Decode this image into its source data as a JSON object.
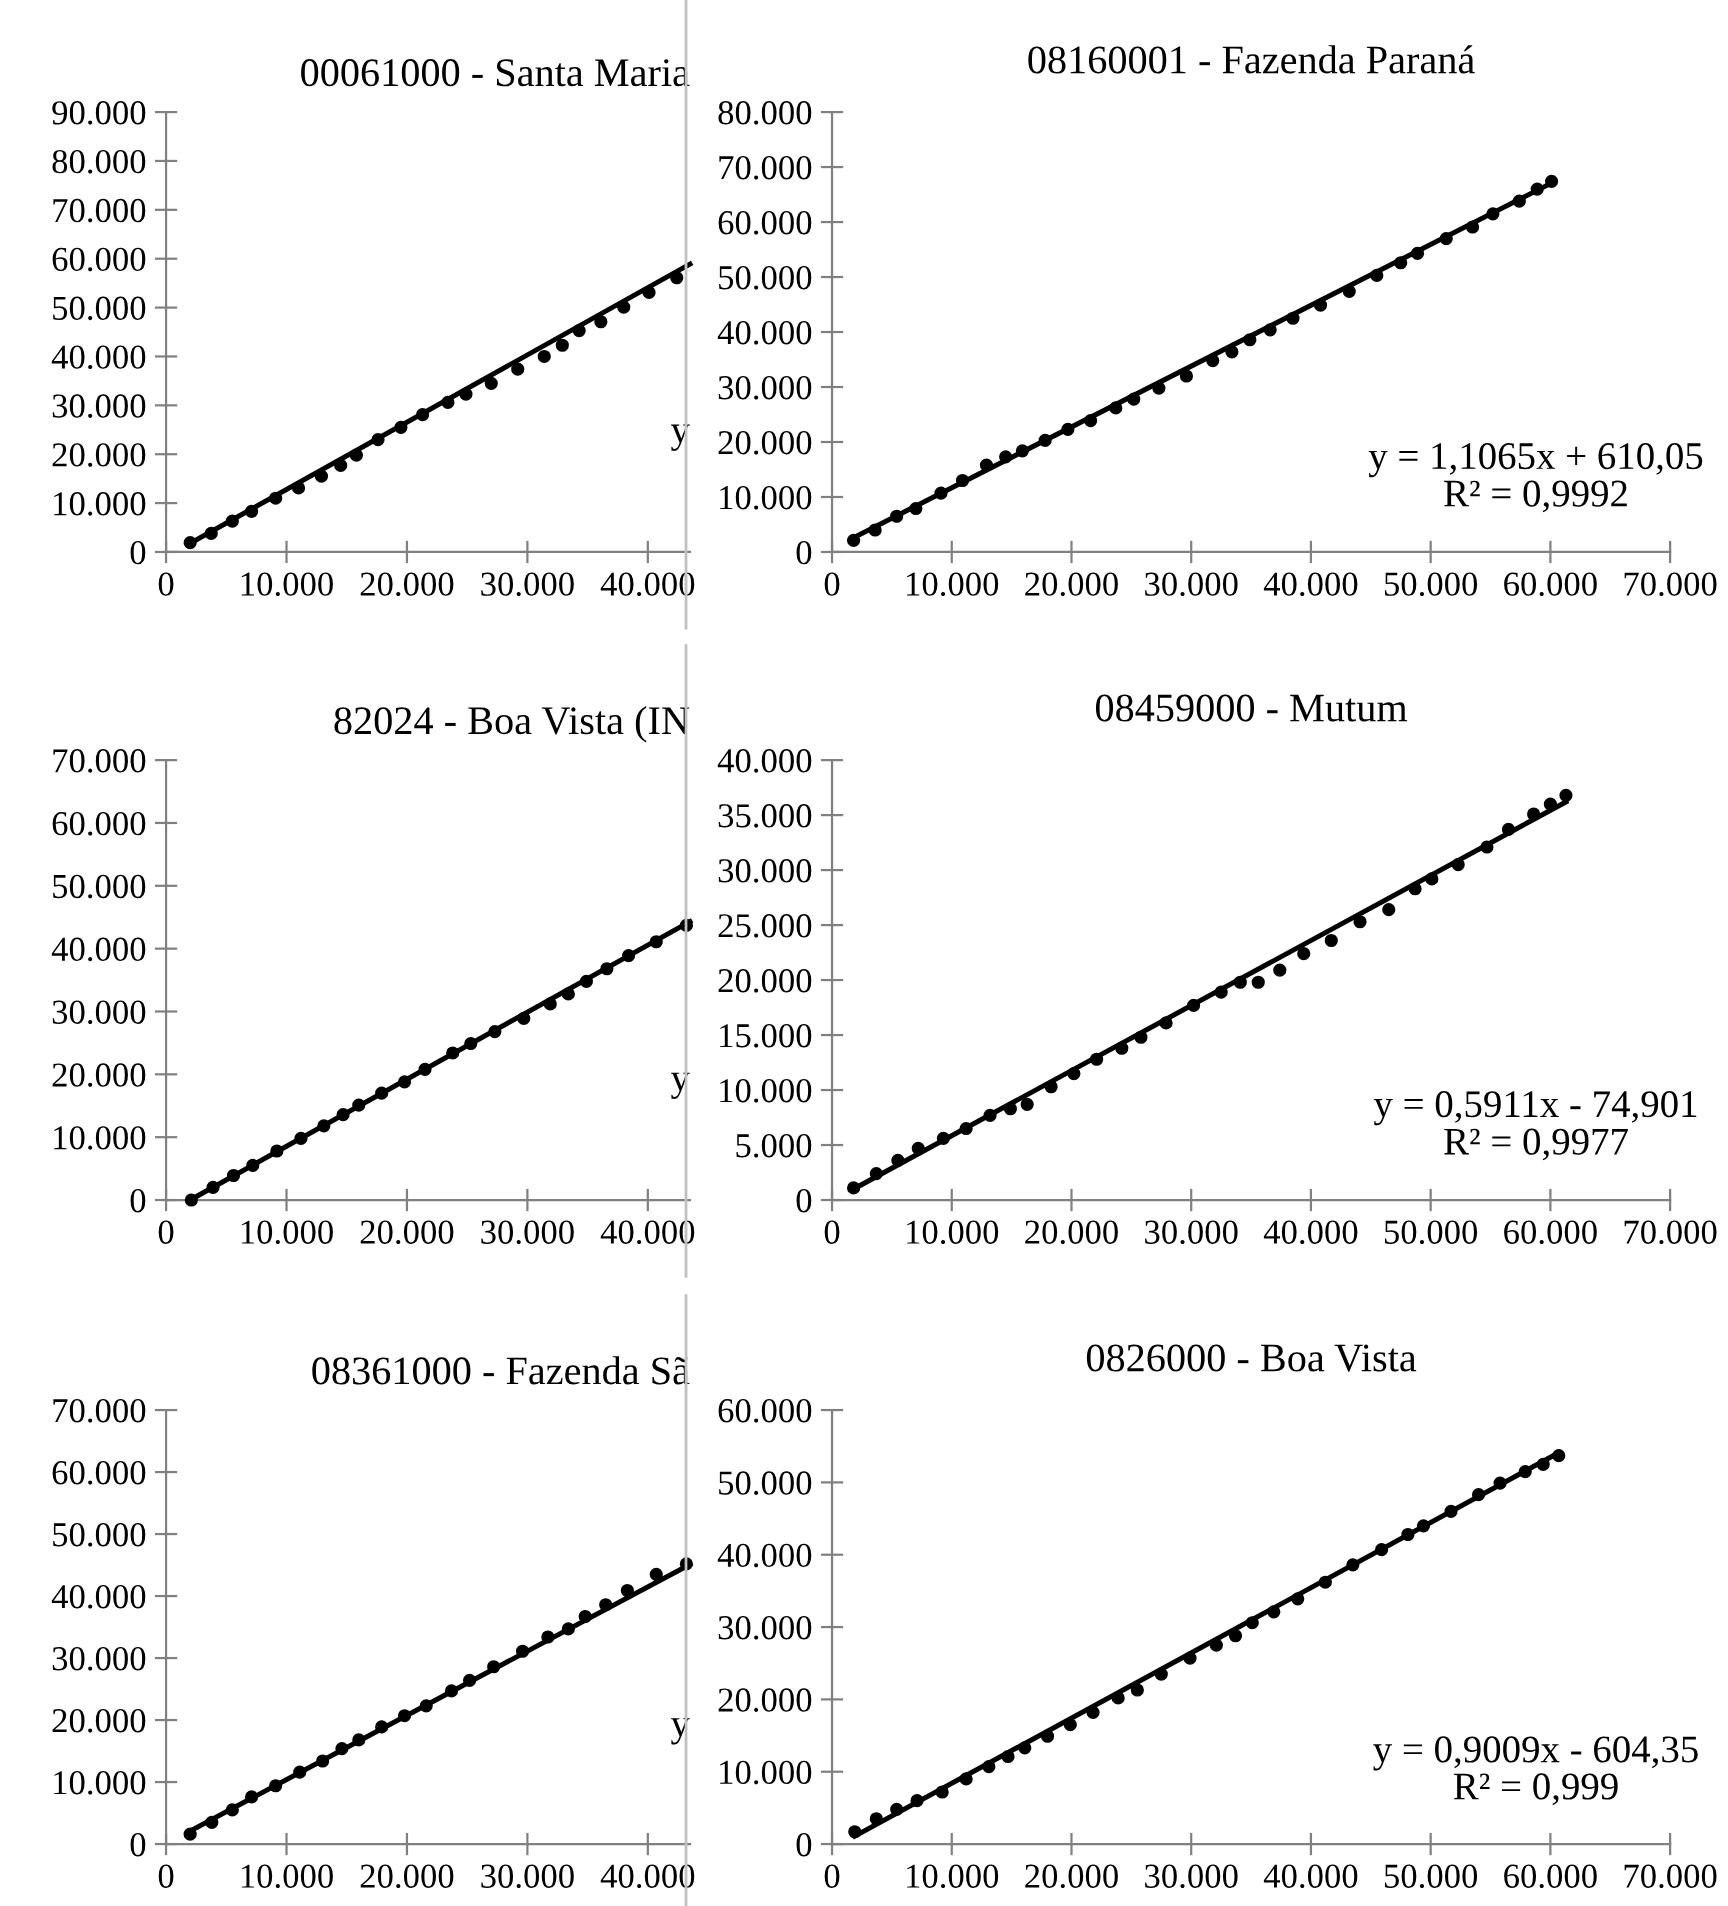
{
  "chart_data": [
    {
      "type": "scatter",
      "title": "00061000 - Santa Maria",
      "annotations": [
        "y"
      ],
      "xlim": [
        0,
        43500
      ],
      "ylim": [
        0,
        90000
      ],
      "xticks": [
        0,
        {
          "value": 10000,
          "label": "10.000"
        },
        {
          "value": 20000,
          "label": "20.000"
        },
        {
          "value": 30000,
          "label": "30.000"
        },
        {
          "value": 40000,
          "label": "40.000"
        }
      ],
      "yticks": [
        0,
        {
          "value": 10000,
          "label": "10.000"
        },
        {
          "value": 20000,
          "label": "20.000"
        },
        {
          "value": 30000,
          "label": "30.000"
        },
        {
          "value": 40000,
          "label": "40.000"
        },
        {
          "value": 50000,
          "label": "50.000"
        },
        {
          "value": 60000,
          "label": "60.000"
        },
        {
          "value": 70000,
          "label": "70.000"
        },
        {
          "value": 80000,
          "label": "80.000"
        },
        {
          "value": 90000,
          "label": "90.000"
        }
      ],
      "series": [
        {
          "marker": "circle",
          "color": "#000000",
          "x": [
            2000,
            3750,
            5500,
            7100,
            9100,
            11000,
            12900,
            14500,
            15800,
            17600,
            19500,
            21300,
            23400,
            24900,
            27000,
            29200,
            31400,
            32900,
            34300,
            36100,
            38000,
            40100,
            42400
          ],
          "values": [
            1900,
            3800,
            6300,
            8300,
            11000,
            13100,
            15500,
            17700,
            19800,
            23000,
            25500,
            28100,
            30600,
            32300,
            34500,
            37400,
            40000,
            42300,
            45300,
            47100,
            50100,
            53100,
            56100
          ]
        },
        {
          "type": "line",
          "marker": "none",
          "color": "#000000",
          "x": [
            1800,
            43500
          ],
          "values": [
            1500,
            58900
          ]
        }
      ]
    },
    {
      "type": "scatter",
      "title": "08160001 - Fazenda Paraná",
      "annotations": [
        "y = 1,1065x + 610,05",
        "R² = 0,9992"
      ],
      "xlim": [
        0,
        70000
      ],
      "ylim": [
        0,
        80000
      ],
      "xticks": [
        0,
        {
          "value": 10000,
          "label": "10.000"
        },
        {
          "value": 20000,
          "label": "20.000"
        },
        {
          "value": 30000,
          "label": "30.000"
        },
        {
          "value": 40000,
          "label": "40.000"
        },
        {
          "value": 50000,
          "label": "50.000"
        },
        {
          "value": 60000,
          "label": "60.000"
        },
        {
          "value": 70000,
          "label": "70.000"
        }
      ],
      "yticks": [
        0,
        {
          "value": 10000,
          "label": "10.000"
        },
        {
          "value": 20000,
          "label": "20.000"
        },
        {
          "value": 30000,
          "label": "30.000"
        },
        {
          "value": 40000,
          "label": "40.000"
        },
        {
          "value": 50000,
          "label": "50.000"
        },
        {
          "value": 60000,
          "label": "60.000"
        },
        {
          "value": 70000,
          "label": "70.000"
        },
        {
          "value": 80000,
          "label": "80.000"
        }
      ],
      "series": [
        {
          "marker": "circle",
          "color": "#000000",
          "x": [
            1800,
            3600,
            5400,
            7000,
            9100,
            10900,
            12900,
            14500,
            15900,
            17800,
            19700,
            21600,
            23700,
            25200,
            27300,
            29600,
            31800,
            33400,
            34900,
            36600,
            38500,
            40800,
            43200,
            45500,
            47500,
            48900,
            51300,
            53500,
            55200,
            57400,
            58900,
            60100
          ],
          "values": [
            2100,
            4000,
            6500,
            7900,
            10700,
            13000,
            15800,
            17300,
            18400,
            20300,
            22300,
            23900,
            26200,
            27800,
            29800,
            32000,
            34800,
            36400,
            38600,
            40400,
            42500,
            44900,
            47400,
            50300,
            52600,
            54300,
            57000,
            59100,
            61500,
            63800,
            66000,
            67400
          ]
        },
        {
          "type": "line",
          "marker": "none",
          "color": "#000000",
          "x": [
            1800,
            60100
          ],
          "values": [
            2600,
            67100
          ]
        }
      ]
    },
    {
      "type": "scatter",
      "title": "82024 - Boa Vista (IN",
      "annotations": [
        "y"
      ],
      "xlim": [
        0,
        43500
      ],
      "ylim": [
        0,
        70000
      ],
      "xticks": [
        0,
        {
          "value": 10000,
          "label": "10.000"
        },
        {
          "value": 20000,
          "label": "20.000"
        },
        {
          "value": 30000,
          "label": "30.000"
        },
        {
          "value": 40000,
          "label": "40.000"
        }
      ],
      "yticks": [
        0,
        {
          "value": 10000,
          "label": "10.000"
        },
        {
          "value": 20000,
          "label": "20.000"
        },
        {
          "value": 30000,
          "label": "30.000"
        },
        {
          "value": 40000,
          "label": "40.000"
        },
        {
          "value": 50000,
          "label": "50.000"
        },
        {
          "value": 60000,
          "label": "60.000"
        },
        {
          "value": 70000,
          "label": "70.000"
        }
      ],
      "series": [
        {
          "marker": "circle",
          "color": "#000000",
          "x": [
            2100,
            3900,
            5600,
            7200,
            9200,
            11200,
            13100,
            14700,
            16000,
            17900,
            19800,
            21500,
            23800,
            25300,
            27300,
            29700,
            31900,
            33400,
            34900,
            36600,
            38400,
            40700,
            43200
          ],
          "values": [
            0,
            2000,
            3900,
            5500,
            7800,
            9800,
            11800,
            13600,
            15100,
            17000,
            18800,
            20800,
            23400,
            24900,
            26800,
            28900,
            31200,
            32800,
            34800,
            36800,
            38900,
            41100,
            43700
          ]
        },
        {
          "type": "line",
          "marker": "none",
          "color": "#000000",
          "x": [
            2000,
            43500
          ],
          "values": [
            0,
            44300
          ]
        }
      ]
    },
    {
      "type": "scatter",
      "title": "08459000 - Mutum",
      "annotations": [
        "y = 0,5911x - 74,901",
        "R² = 0,9977"
      ],
      "xlim": [
        0,
        70000
      ],
      "ylim": [
        0,
        40000
      ],
      "xticks": [
        0,
        {
          "value": 10000,
          "label": "10.000"
        },
        {
          "value": 20000,
          "label": "20.000"
        },
        {
          "value": 30000,
          "label": "30.000"
        },
        {
          "value": 40000,
          "label": "40.000"
        },
        {
          "value": 50000,
          "label": "50.000"
        },
        {
          "value": 60000,
          "label": "60.000"
        },
        {
          "value": 70000,
          "label": "70.000"
        }
      ],
      "yticks": [
        0,
        {
          "value": 5000,
          "label": "5.000"
        },
        {
          "value": 10000,
          "label": "10.000"
        },
        {
          "value": 15000,
          "label": "15.000"
        },
        {
          "value": 20000,
          "label": "20.000"
        },
        {
          "value": 25000,
          "label": "25.000"
        },
        {
          "value": 30000,
          "label": "30.000"
        },
        {
          "value": 35000,
          "label": "35.000"
        },
        {
          "value": 40000,
          "label": "40.000"
        }
      ],
      "series": [
        {
          "marker": "circle",
          "color": "#000000",
          "x": [
            1800,
            3700,
            5500,
            7200,
            9300,
            11200,
            13200,
            14900,
            16300,
            18300,
            20200,
            22100,
            24200,
            25800,
            27900,
            30200,
            32500,
            34100,
            35600,
            37400,
            39400,
            41700,
            44100,
            46500,
            48700,
            50100,
            52300,
            54700,
            56500,
            58600,
            60000,
            61300
          ],
          "values": [
            1100,
            2400,
            3600,
            4700,
            5600,
            6500,
            7700,
            8300,
            8700,
            10300,
            11500,
            12800,
            13800,
            14800,
            16100,
            17700,
            18900,
            19800,
            19800,
            20900,
            22400,
            23600,
            25300,
            26400,
            28300,
            29200,
            30500,
            32100,
            33700,
            35100,
            36000,
            36800
          ]
        },
        {
          "type": "line",
          "marker": "none",
          "color": "#000000",
          "x": [
            1800,
            61300
          ],
          "values": [
            1000,
            36200
          ]
        }
      ]
    },
    {
      "type": "scatter",
      "title": "08361000 - Fazenda Sã",
      "annotations": [
        "y"
      ],
      "xlim": [
        0,
        43500
      ],
      "ylim": [
        0,
        70000
      ],
      "xticks": [
        0,
        {
          "value": 10000,
          "label": "10.000"
        },
        {
          "value": 20000,
          "label": "20.000"
        },
        {
          "value": 30000,
          "label": "30.000"
        },
        {
          "value": 40000,
          "label": "40.000"
        }
      ],
      "yticks": [
        0,
        {
          "value": 10000,
          "label": "10.000"
        },
        {
          "value": 20000,
          "label": "20.000"
        },
        {
          "value": 30000,
          "label": "30.000"
        },
        {
          "value": 40000,
          "label": "40.000"
        },
        {
          "value": 50000,
          "label": "50.000"
        },
        {
          "value": 60000,
          "label": "60.000"
        },
        {
          "value": 70000,
          "label": "70.000"
        }
      ],
      "series": [
        {
          "marker": "circle",
          "color": "#000000",
          "x": [
            2000,
            3800,
            5500,
            7100,
            9100,
            11100,
            13000,
            14600,
            16000,
            17900,
            19800,
            21600,
            23700,
            25200,
            27200,
            29600,
            31700,
            33400,
            34800,
            36500,
            38300,
            40700,
            43200
          ],
          "values": [
            1600,
            3500,
            5500,
            7600,
            9400,
            11600,
            13400,
            15400,
            16800,
            18900,
            20700,
            22300,
            24700,
            26400,
            28600,
            31100,
            33400,
            34700,
            36700,
            38600,
            40900,
            43500,
            45200
          ]
        },
        {
          "type": "line",
          "marker": "none",
          "color": "#000000",
          "x": [
            1900,
            43500
          ],
          "values": [
            2000,
            45100
          ]
        }
      ]
    },
    {
      "type": "scatter",
      "title": "0826000 - Boa Vista",
      "annotations": [
        "y = 0,9009x - 604,35",
        "R² = 0,999"
      ],
      "xlim": [
        0,
        70000
      ],
      "ylim": [
        0,
        60000
      ],
      "xticks": [
        0,
        {
          "value": 10000,
          "label": "10.000"
        },
        {
          "value": 20000,
          "label": "20.000"
        },
        {
          "value": 30000,
          "label": "30.000"
        },
        {
          "value": 40000,
          "label": "40.000"
        },
        {
          "value": 50000,
          "label": "50.000"
        },
        {
          "value": 60000,
          "label": "60.000"
        },
        {
          "value": 70000,
          "label": "70.000"
        }
      ],
      "yticks": [
        0,
        {
          "value": 10000,
          "label": "10.000"
        },
        {
          "value": 20000,
          "label": "20.000"
        },
        {
          "value": 30000,
          "label": "30.000"
        },
        {
          "value": 40000,
          "label": "40.000"
        },
        {
          "value": 50000,
          "label": "50.000"
        },
        {
          "value": 60000,
          "label": "60.000"
        }
      ],
      "series": [
        {
          "marker": "circle",
          "color": "#000000",
          "x": [
            1900,
            3700,
            5400,
            7100,
            9200,
            11200,
            13100,
            14700,
            16100,
            18000,
            19900,
            21800,
            23900,
            25500,
            27500,
            29900,
            32100,
            33700,
            35100,
            36900,
            38900,
            41200,
            43500,
            45900,
            48100,
            49400,
            51700,
            54000,
            55800,
            57900,
            59400,
            60700
          ],
          "values": [
            1700,
            3500,
            4800,
            6000,
            7200,
            9000,
            10700,
            12100,
            13300,
            14900,
            16500,
            18200,
            20200,
            21300,
            23500,
            25700,
            27500,
            28800,
            30600,
            32100,
            33900,
            36200,
            38600,
            40700,
            42800,
            44000,
            46000,
            48300,
            49900,
            51500,
            52500,
            53700
          ]
        },
        {
          "type": "line",
          "marker": "none",
          "color": "#000000",
          "x": [
            1900,
            60700
          ],
          "values": [
            1100,
            54100
          ]
        }
      ]
    }
  ]
}
